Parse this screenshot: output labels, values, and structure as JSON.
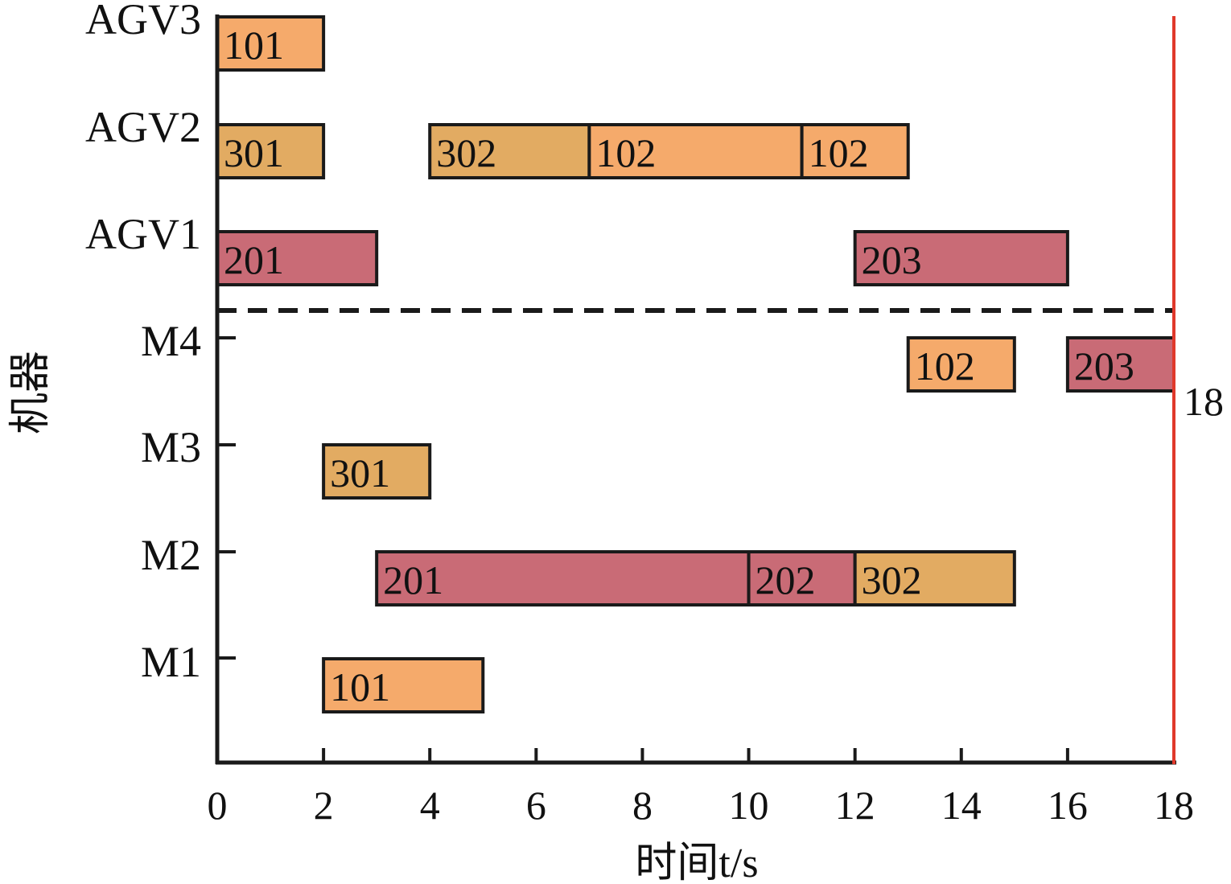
{
  "chart_data": {
    "type": "gantt",
    "xlabel": "时间t/s",
    "ylabel": "机器",
    "xlim": [
      0,
      18
    ],
    "xticks": [
      0,
      2,
      4,
      6,
      8,
      10,
      12,
      14,
      16,
      18
    ],
    "rows": [
      "AGV3",
      "AGV2",
      "AGV1",
      "M4",
      "M3",
      "M2",
      "M1"
    ],
    "separator": "dashed line between AGV1 and M4",
    "makespan": {
      "value": 18,
      "label": "18",
      "color": "#e0392b"
    },
    "job_colors": {
      "1": "#f5aa6b",
      "2": "#c96b76",
      "3": "#e2ab62"
    },
    "tasks": [
      {
        "row": "AGV3",
        "start": 0,
        "end": 2,
        "label": "101",
        "job": "1"
      },
      {
        "row": "AGV2",
        "start": 0,
        "end": 2,
        "label": "301",
        "job": "3"
      },
      {
        "row": "AGV2",
        "start": 4,
        "end": 7,
        "label": "302",
        "job": "3"
      },
      {
        "row": "AGV2",
        "start": 7,
        "end": 11,
        "label": "102",
        "job": "1"
      },
      {
        "row": "AGV2",
        "start": 11,
        "end": 13,
        "label": "102",
        "job": "1"
      },
      {
        "row": "AGV1",
        "start": 0,
        "end": 3,
        "label": "201",
        "job": "2"
      },
      {
        "row": "AGV1",
        "start": 12,
        "end": 16,
        "label": "203",
        "job": "2"
      },
      {
        "row": "M4",
        "start": 13,
        "end": 15,
        "label": "102",
        "job": "1"
      },
      {
        "row": "M4",
        "start": 16,
        "end": 18,
        "label": "203",
        "job": "2"
      },
      {
        "row": "M3",
        "start": 2,
        "end": 4,
        "label": "301",
        "job": "3"
      },
      {
        "row": "M2",
        "start": 3,
        "end": 10,
        "label": "201",
        "job": "2"
      },
      {
        "row": "M2",
        "start": 10,
        "end": 12,
        "label": "202",
        "job": "2"
      },
      {
        "row": "M2",
        "start": 12,
        "end": 15,
        "label": "302",
        "job": "3"
      },
      {
        "row": "M1",
        "start": 2,
        "end": 5,
        "label": "101",
        "job": "1"
      }
    ]
  }
}
